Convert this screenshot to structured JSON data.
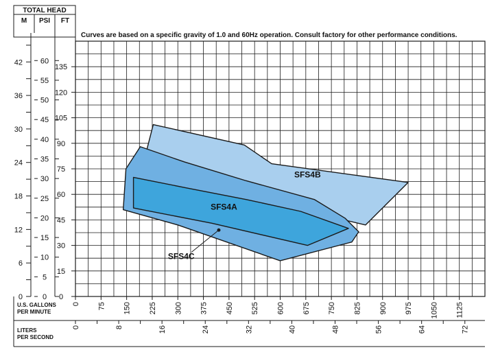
{
  "header": {
    "title": "TOTAL HEAD",
    "col_m": "M",
    "col_psi": "PSI",
    "col_ft": "FT"
  },
  "note": "Curves are based on a specific gravity of 1.0 and 60Hz operation. Consult factory for other performance conditions.",
  "gpm_label_1": "U.S. GALLONS",
  "gpm_label_2": "PER MINUTE",
  "lps_label_1": "LITERS",
  "lps_label_2": "PER SECOND",
  "colors": {
    "sfs4b_fill": "#a9cfee",
    "sfs4c_fill": "#6fb0e2",
    "sfs4a_fill": "#3ea5dc",
    "line": "#1a1a1a"
  },
  "chart_data": {
    "type": "area",
    "x_unit": "U.S. GALLONS PER MINUTE",
    "y_unit": "FT",
    "xlim": [
      0,
      1200
    ],
    "ylim": [
      0,
      150
    ],
    "grid": true,
    "x_ticks": [
      "0",
      "75",
      "150",
      "225",
      "300",
      "375",
      "450",
      "525",
      "600",
      "675",
      "750",
      "825",
      "900",
      "975",
      "1050",
      "1125"
    ],
    "ft_ticks": [
      "0",
      "15",
      "30",
      "45",
      "60",
      "75",
      "90",
      "105",
      "120",
      "135"
    ],
    "psi_ticks": [
      "0",
      "5",
      "10",
      "15",
      "20",
      "25",
      "30",
      "35",
      "40",
      "45",
      "50",
      "55",
      "60"
    ],
    "m_ticks": [
      "0",
      "6",
      "12",
      "18",
      "24",
      "30",
      "36",
      "42"
    ],
    "lps_ticks": [
      "0",
      "8",
      "16",
      "24",
      "32",
      "40",
      "48",
      "56",
      "64",
      "72"
    ],
    "series": [
      {
        "name": "SFS4B",
        "label_pos": [
          680,
          70
        ],
        "polygon": [
          [
            228,
            101
          ],
          [
            495,
            89
          ],
          [
            575,
            78
          ],
          [
            975,
            67
          ],
          [
            850,
            42
          ],
          [
            640,
            52
          ],
          [
            430,
            60
          ],
          [
            250,
            69
          ],
          [
            205,
            83
          ],
          [
            228,
            101
          ]
        ]
      },
      {
        "name": "SFS4C",
        "label_pos": [
          310,
          22
        ],
        "pointer": [
          [
            340,
            26
          ],
          [
            420,
            39
          ]
        ],
        "polygon": [
          [
            190,
            88
          ],
          [
            320,
            79
          ],
          [
            500,
            68
          ],
          [
            700,
            57
          ],
          [
            790,
            46
          ],
          [
            830,
            38
          ],
          [
            810,
            32
          ],
          [
            600,
            21
          ],
          [
            300,
            42
          ],
          [
            140,
            51
          ],
          [
            148,
            75
          ],
          [
            190,
            88
          ]
        ]
      },
      {
        "name": "SFS4A",
        "label_pos": [
          435,
          51
        ],
        "polygon": [
          [
            170,
            70
          ],
          [
            320,
            64
          ],
          [
            500,
            57
          ],
          [
            660,
            50
          ],
          [
            800,
            40
          ],
          [
            680,
            30
          ],
          [
            400,
            43
          ],
          [
            170,
            52
          ],
          [
            170,
            70
          ]
        ]
      }
    ]
  }
}
